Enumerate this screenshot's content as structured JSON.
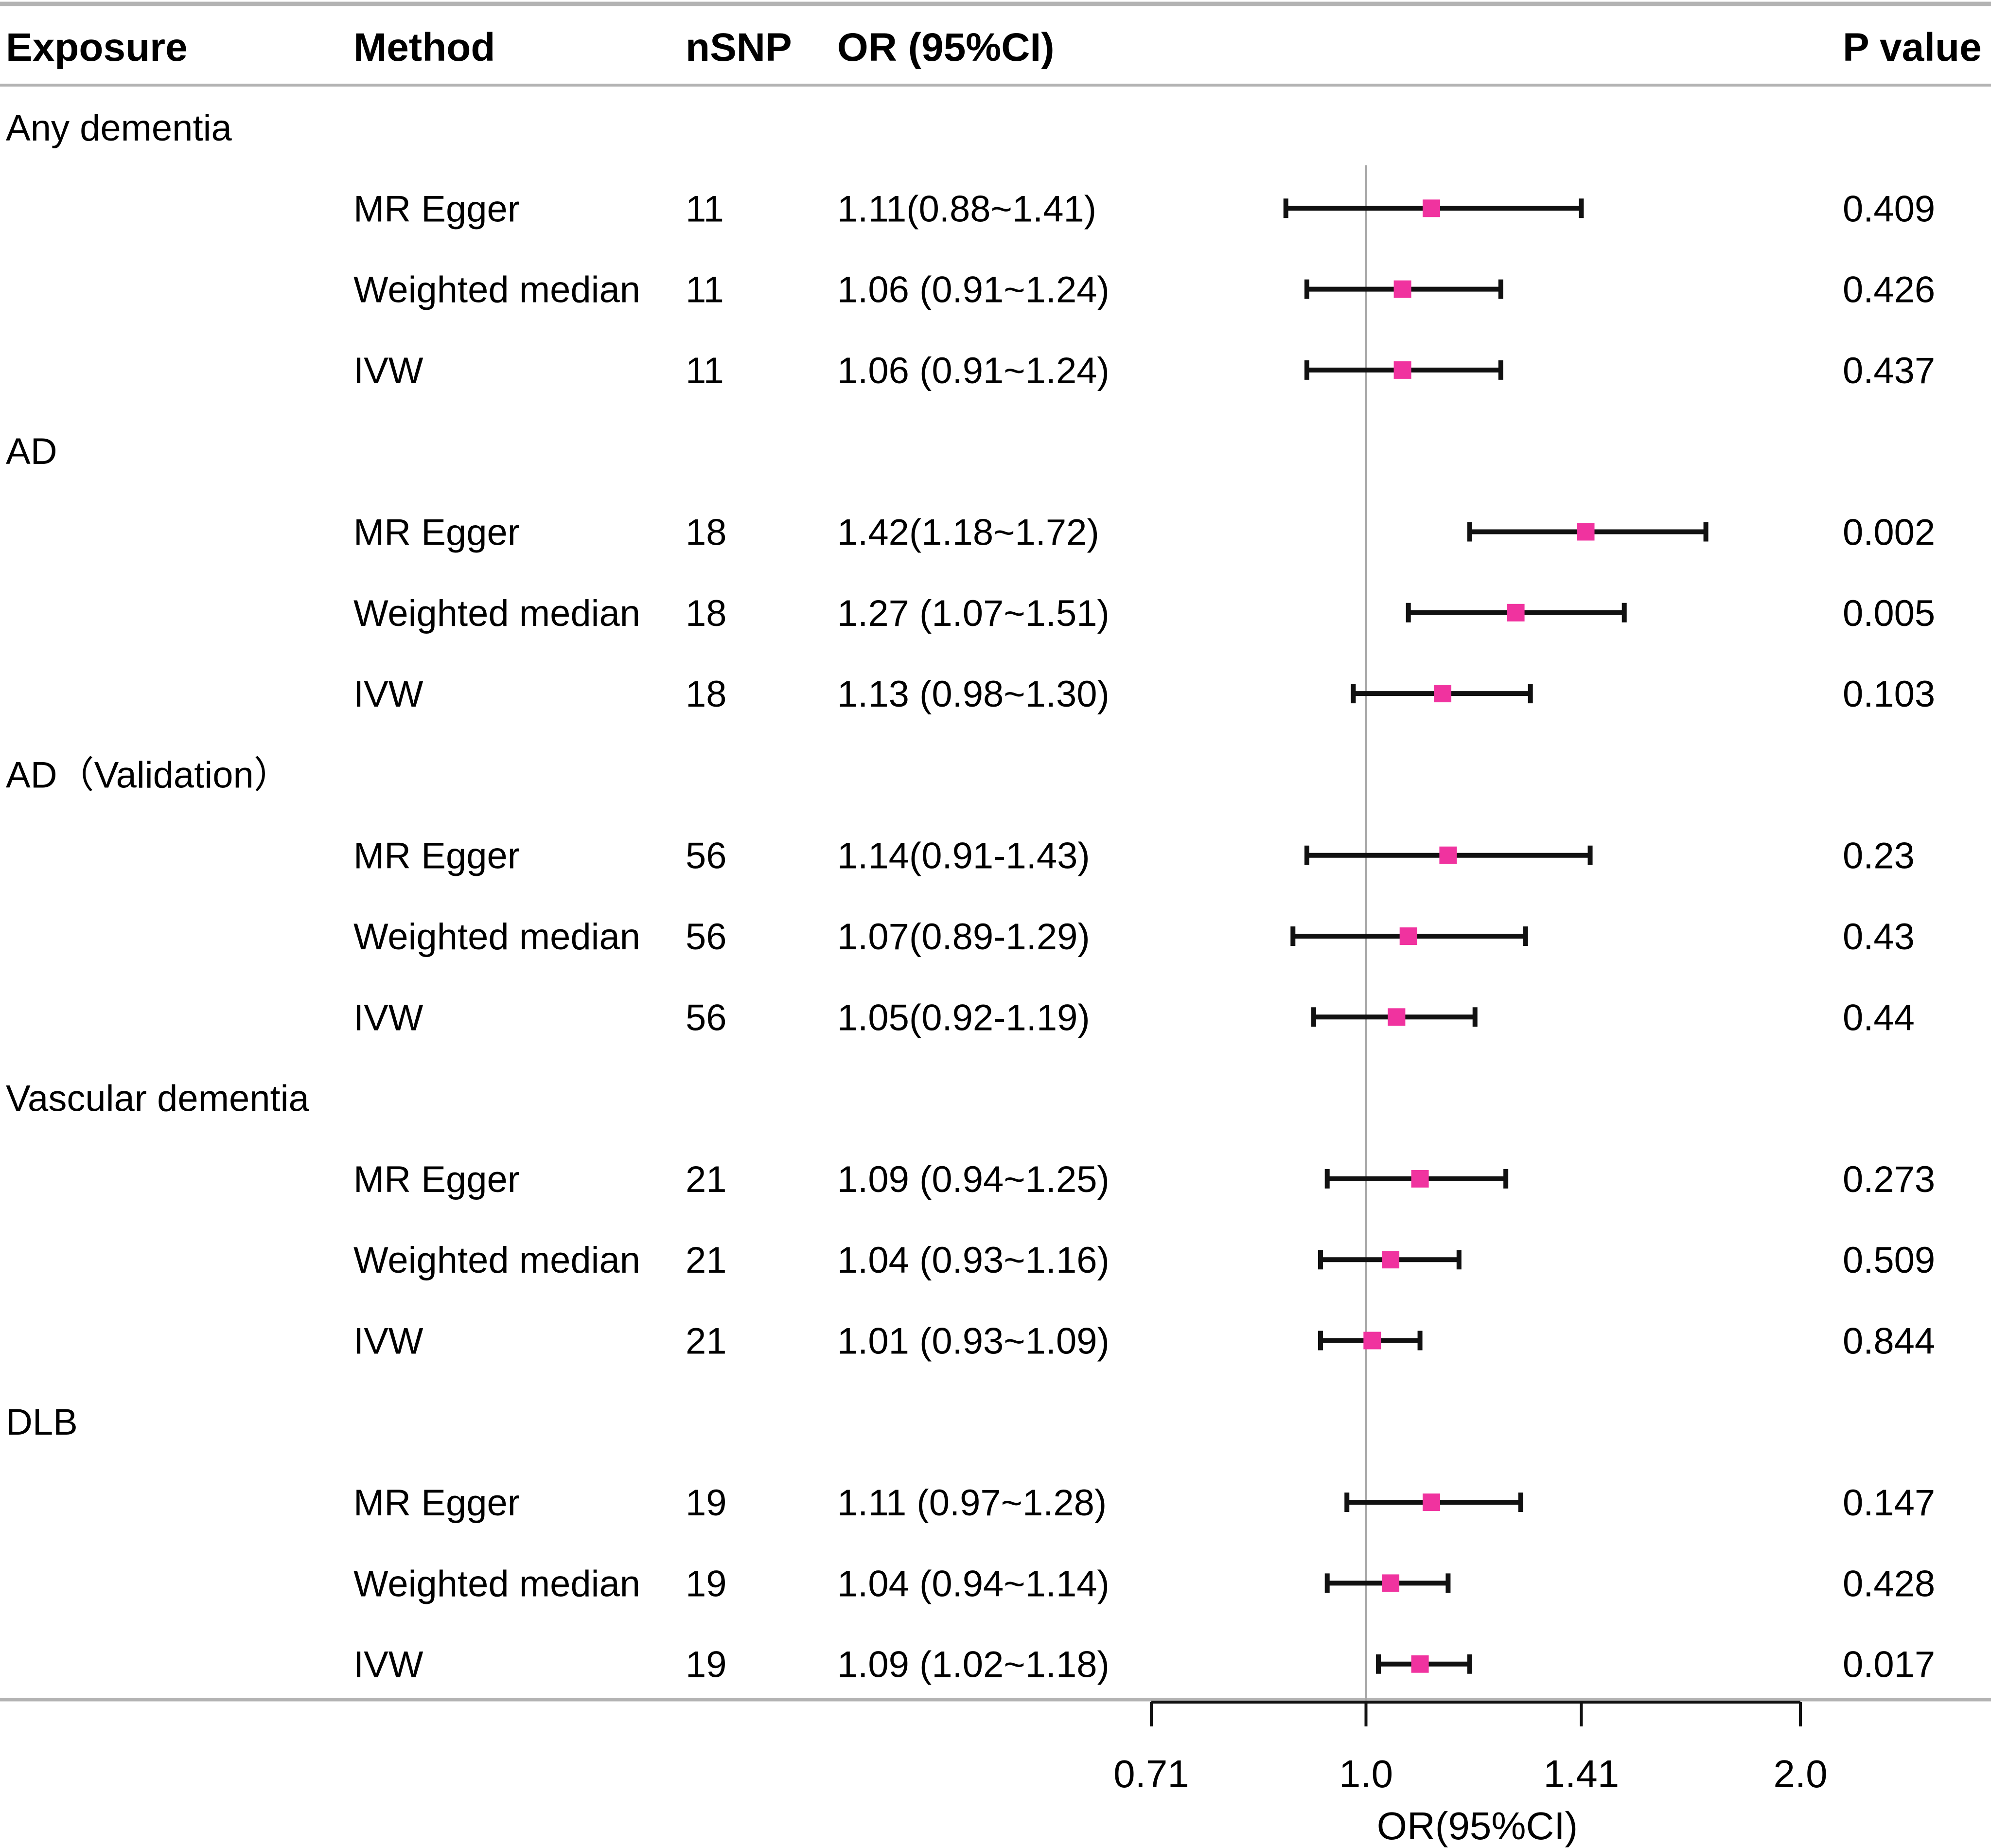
{
  "chart_data": {
    "type": "forest",
    "columns": {
      "exposure": "Exposure",
      "method": "Method",
      "nsnp": "nSNP",
      "or_ci": "OR (95%CI)",
      "p": "P value"
    },
    "x_axis": {
      "label": "OR(95%CI)",
      "scale": "log",
      "ticks": [
        0.71,
        1.0,
        1.41,
        2.0
      ],
      "tick_labels": [
        "0.71",
        "1.0",
        "1.41",
        "2.0"
      ],
      "range": [
        0.71,
        2.0
      ],
      "reference_line": 1.0
    },
    "colors": {
      "marker": "#f0339f",
      "whisker": "#111111",
      "reference": "#a6a6a6",
      "rule": "#b3b3b3"
    },
    "groups": [
      {
        "exposure": "Any dementia",
        "rows": [
          {
            "method": "MR Egger",
            "nsnp": "11",
            "or_text": "1.11(0.88~1.41)",
            "or": 1.11,
            "lo": 0.88,
            "hi": 1.41,
            "p": "0.409"
          },
          {
            "method": "Weighted median",
            "nsnp": "11",
            "or_text": "1.06 (0.91~1.24)",
            "or": 1.06,
            "lo": 0.91,
            "hi": 1.24,
            "p": "0.426"
          },
          {
            "method": "IVW",
            "nsnp": "11",
            "or_text": "1.06 (0.91~1.24)",
            "or": 1.06,
            "lo": 0.91,
            "hi": 1.24,
            "p": "0.437"
          }
        ]
      },
      {
        "exposure": "AD",
        "rows": [
          {
            "method": "MR Egger",
            "nsnp": "18",
            "or_text": "1.42(1.18~1.72)",
            "or": 1.42,
            "lo": 1.18,
            "hi": 1.72,
            "p": "0.002"
          },
          {
            "method": "Weighted median",
            "nsnp": "18",
            "or_text": "1.27 (1.07~1.51)",
            "or": 1.27,
            "lo": 1.07,
            "hi": 1.51,
            "p": "0.005"
          },
          {
            "method": "IVW",
            "nsnp": "18",
            "or_text": "1.13 (0.98~1.30)",
            "or": 1.13,
            "lo": 0.98,
            "hi": 1.3,
            "p": "0.103"
          }
        ]
      },
      {
        "exposure": "AD（Validation）",
        "rows": [
          {
            "method": "MR Egger",
            "nsnp": "56",
            "or_text": "1.14(0.91-1.43)",
            "or": 1.14,
            "lo": 0.91,
            "hi": 1.43,
            "p": "0.23"
          },
          {
            "method": "Weighted median",
            "nsnp": "56",
            "or_text": "1.07(0.89-1.29)",
            "or": 1.07,
            "lo": 0.89,
            "hi": 1.29,
            "p": "0.43"
          },
          {
            "method": "IVW",
            "nsnp": "56",
            "or_text": "1.05(0.92-1.19)",
            "or": 1.05,
            "lo": 0.92,
            "hi": 1.19,
            "p": "0.44"
          }
        ]
      },
      {
        "exposure": "Vascular dementia",
        "rows": [
          {
            "method": "MR Egger",
            "nsnp": "21",
            "or_text": "1.09 (0.94~1.25)",
            "or": 1.09,
            "lo": 0.94,
            "hi": 1.25,
            "p": "0.273"
          },
          {
            "method": "Weighted median",
            "nsnp": "21",
            "or_text": "1.04 (0.93~1.16)",
            "or": 1.04,
            "lo": 0.93,
            "hi": 1.16,
            "p": "0.509"
          },
          {
            "method": "IVW",
            "nsnp": "21",
            "or_text": "1.01 (0.93~1.09)",
            "or": 1.01,
            "lo": 0.93,
            "hi": 1.09,
            "p": "0.844"
          }
        ]
      },
      {
        "exposure": "DLB",
        "rows": [
          {
            "method": "MR Egger",
            "nsnp": "19",
            "or_text": "1.11 (0.97~1.28)",
            "or": 1.11,
            "lo": 0.97,
            "hi": 1.28,
            "p": "0.147"
          },
          {
            "method": "Weighted median",
            "nsnp": "19",
            "or_text": "1.04 (0.94~1.14)",
            "or": 1.04,
            "lo": 0.94,
            "hi": 1.14,
            "p": "0.428"
          },
          {
            "method": "IVW",
            "nsnp": "19",
            "or_text": "1.09 (1.02~1.18)",
            "or": 1.09,
            "lo": 1.02,
            "hi": 1.18,
            "p": "0.017"
          }
        ]
      }
    ]
  }
}
